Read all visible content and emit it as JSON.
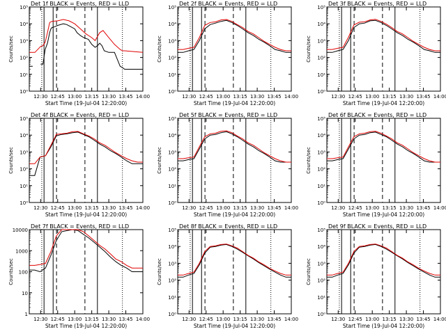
{
  "figure": {
    "time_start": "12:20:00",
    "x_ticks": [
      "12:30",
      "12:45",
      "13:00",
      "13:15",
      "13:30",
      "13:45",
      "14:00"
    ],
    "x_label": "Start Time (19-Jul-04 12:20:00)",
    "y_label": "Counts/sec",
    "legend": "BLACK = Events, RED = LLD",
    "colors": {
      "events": "#000000",
      "lld": "#e00000",
      "axes": "#000000"
    },
    "tick_labels_sci": [
      "10⁰",
      "10¹",
      "10²",
      "10³",
      "10⁴",
      "10⁵"
    ],
    "tick_labels_plain": [
      "1",
      "10",
      "100",
      "1000",
      "10000"
    ]
  },
  "chart_data": [
    {
      "type": "line",
      "title": "Det 1f BLACK = Events, RED = LLD",
      "xlabel": "Start Time (19-Jul-04 12:20:00)",
      "ylabel": "Counts/sec",
      "ylim": [
        1,
        100000
      ],
      "y_scale": "log",
      "x_range_minutes": [
        0,
        100
      ],
      "series": [
        {
          "name": "Events",
          "x": [
            0,
            3,
            4,
            5,
            7,
            10,
            12,
            14,
            16,
            18,
            19,
            20,
            22,
            25,
            30,
            33,
            36,
            40,
            42,
            45,
            48,
            52,
            55,
            58,
            60,
            62,
            64,
            66,
            70,
            75,
            80,
            82,
            84,
            86,
            100
          ],
          "values": [
            30,
            30,
            null,
            null,
            null,
            40,
            40,
            300,
            700,
            3000,
            5000,
            6000,
            6500,
            8000,
            10000,
            9000,
            7000,
            5000,
            3000,
            2000,
            1500,
            1200,
            600,
            400,
            500,
            700,
            500,
            250,
            200,
            200,
            30,
            25,
            20,
            20,
            20
          ]
        },
        {
          "name": "LLD",
          "x": [
            0,
            5,
            10,
            12,
            14,
            16,
            18,
            20,
            25,
            30,
            35,
            40,
            45,
            50,
            55,
            58,
            62,
            65,
            70,
            75,
            80,
            82,
            84,
            100
          ],
          "values": [
            200,
            200,
            450,
            500,
            800,
            3000,
            12000,
            14000,
            15000,
            18000,
            15000,
            10000,
            5000,
            2500,
            1500,
            1000,
            3000,
            4000,
            1500,
            600,
            300,
            250,
            250,
            200
          ]
        }
      ],
      "annotations": [
        "solid lines at 12:33, 12:41, 13:20",
        "dashed lines at 12:44, 13:09",
        "dotted lines at 12:31, 13:42"
      ]
    },
    {
      "type": "line",
      "title": "Det 2f BLACK = Events, RED = LLD",
      "xlabel": "Start Time (19-Jul-04 12:20:00)",
      "ylabel": "Counts/sec",
      "ylim": [
        1,
        100000
      ],
      "y_scale": "log",
      "series": [
        {
          "name": "Events",
          "values": [
            200,
            200,
            250,
            300,
            1000,
            5000,
            9000,
            11000,
            14000,
            16000,
            12000,
            8000,
            5000,
            3000,
            2000,
            1200,
            800,
            500,
            300,
            250,
            200,
            200
          ]
        },
        {
          "name": "LLD",
          "values": [
            300,
            300,
            350,
            400,
            1500,
            8000,
            12000,
            13000,
            17000,
            18000,
            14000,
            9000,
            6000,
            3500,
            2500,
            1500,
            900,
            600,
            400,
            300,
            250,
            250
          ]
        }
      ]
    },
    {
      "type": "line",
      "title": "Det 3f BLACK = Events, RED = LLD",
      "xlabel": "Start Time (19-Jul-04 12:20:00)",
      "ylabel": "Counts/sec",
      "ylim": [
        1,
        100000
      ],
      "y_scale": "log",
      "series": [
        {
          "name": "Events",
          "values": [
            200,
            200,
            250,
            300,
            1000,
            6000,
            10000,
            11000,
            15000,
            16000,
            12000,
            8000,
            5000,
            3000,
            2000,
            1200,
            800,
            500,
            300,
            250,
            200,
            200
          ]
        },
        {
          "name": "LLD",
          "values": [
            300,
            300,
            350,
            400,
            1600,
            8500,
            12500,
            13000,
            17000,
            18500,
            14000,
            9500,
            6000,
            3500,
            2500,
            1500,
            900,
            600,
            400,
            300,
            250,
            250
          ]
        }
      ]
    },
    {
      "type": "line",
      "title": "Det 4f BLACK = Events, RED = LLD",
      "xlabel": "Start Time (19-Jul-04 12:20:00)",
      "ylabel": "Counts/sec",
      "ylim": [
        1,
        100000
      ],
      "y_scale": "log",
      "series": [
        {
          "name": "Events",
          "values": [
            40,
            40,
            500,
            600,
            2000,
            9000,
            11000,
            12000,
            14000,
            15000,
            11000,
            8000,
            5000,
            3000,
            2000,
            1200,
            800,
            500,
            300,
            200,
            200,
            200
          ]
        },
        {
          "name": "LLD",
          "values": [
            200,
            200,
            500,
            600,
            2500,
            11000,
            12000,
            13000,
            16000,
            16500,
            12000,
            9000,
            6000,
            3500,
            2500,
            1500,
            900,
            600,
            400,
            300,
            250,
            250
          ]
        }
      ]
    },
    {
      "type": "line",
      "title": "Det 5f BLACK = Events, RED = LLD",
      "xlabel": "Start Time (19-Jul-04 12:20:00)",
      "ylabel": "Counts/sec",
      "ylim": [
        1,
        100000
      ],
      "y_scale": "log",
      "series": [
        {
          "name": "Events",
          "values": [
            300,
            300,
            350,
            400,
            1500,
            6000,
            10000,
            11000,
            14000,
            16000,
            12000,
            8000,
            5000,
            3000,
            2000,
            1200,
            800,
            500,
            300,
            250,
            250,
            250
          ]
        },
        {
          "name": "LLD",
          "values": [
            400,
            400,
            450,
            500,
            2000,
            8000,
            12000,
            13000,
            17000,
            18000,
            14000,
            9000,
            6000,
            3500,
            2500,
            1500,
            900,
            600,
            400,
            300,
            250,
            250
          ]
        }
      ]
    },
    {
      "type": "line",
      "title": "Det 6f BLACK = Events, RED = LLD",
      "xlabel": "Start Time (19-Jul-04 12:20:00)",
      "ylabel": "Counts/sec",
      "ylim": [
        1,
        100000
      ],
      "y_scale": "log",
      "series": [
        {
          "name": "Events",
          "values": [
            300,
            300,
            350,
            400,
            1500,
            6000,
            10000,
            11000,
            14000,
            15000,
            11000,
            8000,
            5000,
            3000,
            2000,
            1200,
            800,
            500,
            300,
            250,
            250,
            250
          ]
        },
        {
          "name": "LLD",
          "values": [
            400,
            400,
            450,
            500,
            2000,
            8000,
            12000,
            13000,
            16000,
            17000,
            13000,
            9000,
            6000,
            3500,
            2500,
            1500,
            900,
            600,
            400,
            300,
            250,
            250
          ]
        }
      ]
    },
    {
      "type": "line",
      "title": "Det 7f BLACK = Events, RED = LLD",
      "xlabel": "Start Time (19-Jul-04 12:20:00)",
      "ylabel": "Counts/sec",
      "ylim": [
        1,
        10000
      ],
      "y_scale": "log",
      "series": [
        {
          "name": "Events",
          "values": [
            120,
            120,
            100,
            150,
            600,
            3000,
            8000,
            9000,
            10000,
            9000,
            6000,
            4000,
            2500,
            1500,
            900,
            500,
            300,
            200,
            150,
            100,
            100,
            100
          ]
        },
        {
          "name": "LLD",
          "values": [
            200,
            200,
            220,
            250,
            900,
            5000,
            10000,
            11000,
            12000,
            11000,
            8000,
            5000,
            3000,
            1800,
            1200,
            700,
            400,
            300,
            200,
            150,
            150,
            150
          ]
        }
      ]
    },
    {
      "type": "line",
      "title": "Det 8f BLACK = Events, RED = LLD",
      "xlabel": "Start Time (19-Jul-04 12:20:00)",
      "ylabel": "Counts/sec",
      "ylim": [
        1,
        100000
      ],
      "y_scale": "log",
      "series": [
        {
          "name": "Events",
          "values": [
            150,
            150,
            200,
            250,
            800,
            4000,
            9000,
            10000,
            12000,
            13000,
            10000,
            7000,
            4500,
            2800,
            1800,
            1100,
            700,
            450,
            300,
            200,
            150,
            150
          ]
        },
        {
          "name": "LLD",
          "values": [
            200,
            200,
            250,
            300,
            1000,
            5000,
            10000,
            11000,
            13000,
            14000,
            11000,
            8000,
            5000,
            3000,
            2000,
            1200,
            800,
            500,
            350,
            250,
            200,
            200
          ]
        }
      ]
    },
    {
      "type": "line",
      "title": "Det 9f BLACK = Events, RED = LLD",
      "xlabel": "Start Time (19-Jul-04 12:20:00)",
      "ylabel": "Counts/sec",
      "ylim": [
        1,
        100000
      ],
      "y_scale": "log",
      "series": [
        {
          "name": "Events",
          "values": [
            150,
            150,
            200,
            250,
            800,
            4000,
            9000,
            10000,
            12000,
            13000,
            10000,
            7000,
            4500,
            2800,
            1800,
            1100,
            700,
            450,
            300,
            200,
            150,
            150
          ]
        },
        {
          "name": "LLD",
          "values": [
            200,
            200,
            250,
            300,
            1000,
            5000,
            10000,
            11000,
            13000,
            14000,
            11000,
            8000,
            5000,
            3000,
            2000,
            1200,
            800,
            500,
            350,
            250,
            200,
            200
          ]
        }
      ]
    }
  ]
}
